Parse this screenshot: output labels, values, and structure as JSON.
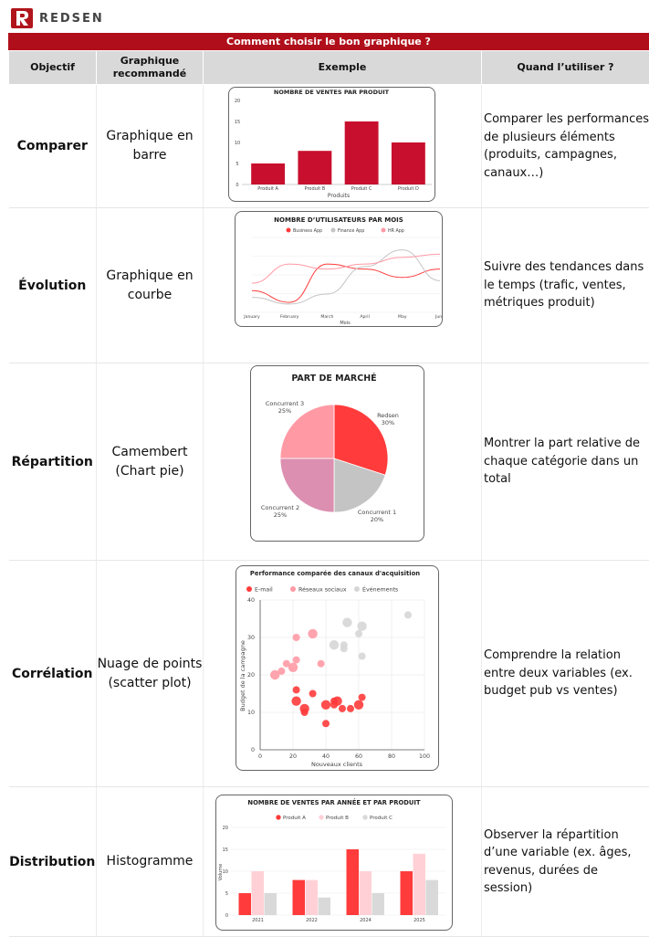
{
  "brand": {
    "name": "REDSEN"
  },
  "banner": {
    "title": "Comment choisir le bon graphique ?"
  },
  "headers": {
    "objective": "Objectif",
    "recommended": "Graphique recommandé",
    "example": "Exemple",
    "when": "Quand l’utiliser ?"
  },
  "rows": [
    {
      "objective": "Comparer",
      "chart": "Graphique en barre",
      "when": "Comparer les performances de plusieurs éléments (produits, campagnes, canaux…)"
    },
    {
      "objective": "Évolution",
      "chart": "Graphique en courbe",
      "when": "Suivre des tendances dans le temps (trafic, ventes, métriques produit)"
    },
    {
      "objective": "Répartition",
      "chart": "Camembert (Chart pie)",
      "when": "Montrer la part relative de chaque catégorie dans un total"
    },
    {
      "objective": "Corrélation",
      "chart": "Nuage de points (scatter plot)",
      "when": "Comprendre la relation entre deux variables (ex. budget pub vs ventes)"
    },
    {
      "objective": "Distribution",
      "chart": "Histogramme",
      "when": "Observer la répartition d’une variable (ex. âges, revenus, durées de session)"
    }
  ],
  "colors": {
    "red": "#c8102e",
    "bright_red": "#ff3b3b",
    "pink": "#ff9aa5",
    "light_pink": "#ffd1d6",
    "gray": "#c4c4c4",
    "mauve": "#dc8fb0"
  },
  "chart_data": [
    {
      "type": "bar",
      "title": "NOMBRE DE VENTES PAR PRODUIT",
      "categories": [
        "Produit A",
        "Produit B",
        "Produit C",
        "Produit D"
      ],
      "values": [
        5,
        8,
        15,
        10
      ],
      "xlabel": "Produits",
      "ylabel": "",
      "ylim": [
        0,
        20
      ],
      "yticks": [
        "0",
        "5",
        "10",
        "15",
        "20"
      ]
    },
    {
      "type": "line",
      "title": "NOMBRE D’UTILISATEURS PAR MOIS",
      "categories": [
        "January",
        "February",
        "March",
        "April",
        "May",
        "June"
      ],
      "xlabel": "Mois",
      "legend": "top",
      "series": [
        {
          "name": "Business App",
          "values": [
            26,
            12,
            58,
            52,
            42,
            52
          ]
        },
        {
          "name": "Finance App",
          "values": [
            18,
            10,
            22,
            55,
            75,
            38
          ]
        },
        {
          "name": "HR App",
          "values": [
            35,
            58,
            52,
            58,
            66,
            70
          ]
        }
      ],
      "ylim": [
        0,
        90
      ]
    },
    {
      "type": "pie",
      "title": "PART DE MARCHÉ",
      "slices": [
        {
          "label": "Redsen",
          "pct_label": "30%",
          "value": 30
        },
        {
          "label": "Concurrent 1",
          "pct_label": "20%",
          "value": 20
        },
        {
          "label": "Concurrent 2",
          "pct_label": "25%",
          "value": 25
        },
        {
          "label": "Concurrent 3",
          "pct_label": "25%",
          "value": 25
        }
      ]
    },
    {
      "type": "scatter",
      "title": "Performance comparée des canaux d'acquisition",
      "xlabel": "Nouveaux clients",
      "ylabel": "Budget de la campagne",
      "xlim": [
        0,
        100
      ],
      "ylim": [
        0,
        40
      ],
      "xticks": [
        "0",
        "20",
        "40",
        "60",
        "80",
        "100"
      ],
      "yticks": [
        "0",
        "10",
        "20",
        "30",
        "40"
      ],
      "legend": "top",
      "series": [
        {
          "name": "E-mail",
          "points": [
            [
              22,
              13
            ],
            [
              22,
              16
            ],
            [
              27,
              10
            ],
            [
              27,
              11
            ],
            [
              32,
              15
            ],
            [
              40,
              7
            ],
            [
              40,
              12
            ],
            [
              45,
              12
            ],
            [
              45,
              13
            ],
            [
              47,
              13
            ],
            [
              50,
              11
            ],
            [
              55,
              11
            ],
            [
              60,
              12
            ],
            [
              62,
              14
            ]
          ]
        },
        {
          "name": "Réseaux sociaux",
          "points": [
            [
              9,
              20
            ],
            [
              13,
              21
            ],
            [
              16,
              23
            ],
            [
              20,
              22
            ],
            [
              22,
              24
            ],
            [
              22,
              30
            ],
            [
              32,
              31
            ],
            [
              37,
              23
            ]
          ]
        },
        {
          "name": "Événements",
          "points": [
            [
              45,
              28
            ],
            [
              51,
              27
            ],
            [
              51,
              28
            ],
            [
              53,
              34
            ],
            [
              60,
              31
            ],
            [
              62,
              25
            ],
            [
              62,
              33
            ],
            [
              90,
              36
            ]
          ]
        }
      ]
    },
    {
      "type": "bar",
      "title": "NOMBRE DE VENTES PAR ANNÉE ET PAR PRODUIT",
      "categories": [
        "2021",
        "2022",
        "2024",
        "2025"
      ],
      "ylabel": "Volume",
      "ylim": [
        0,
        20
      ],
      "yticks": [
        "0",
        "5",
        "10",
        "15",
        "20"
      ],
      "legend": "top",
      "series": [
        {
          "name": "Produit A",
          "values": [
            5,
            8,
            15,
            10
          ]
        },
        {
          "name": "Produit B",
          "values": [
            10,
            8,
            10,
            14
          ]
        },
        {
          "name": "Produit C",
          "values": [
            5,
            4,
            5,
            8
          ]
        }
      ]
    }
  ]
}
